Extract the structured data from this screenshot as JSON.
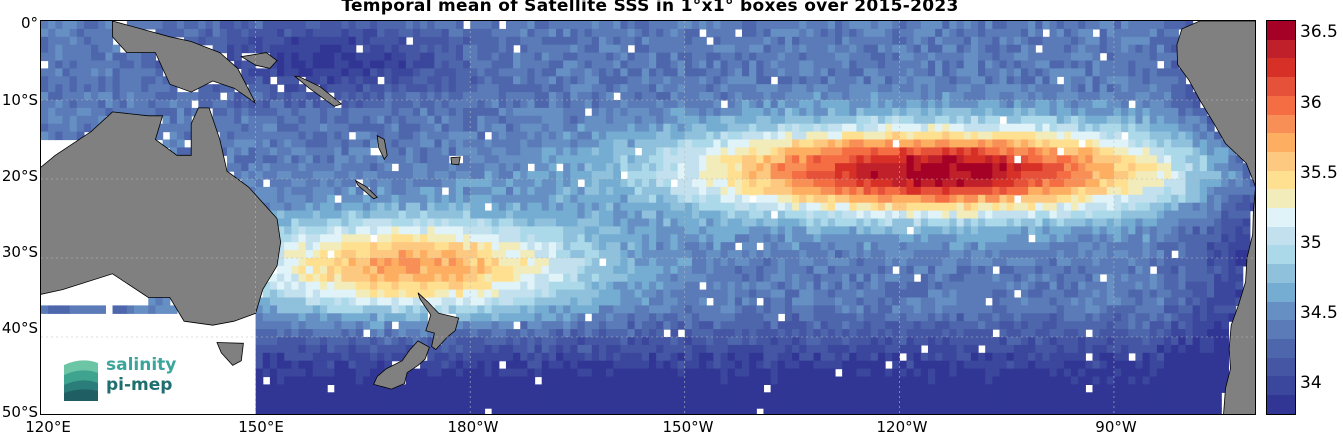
{
  "title": "Temporal mean of Satellite SSS in 1°x1° boxes over 2015-2023",
  "y_ticks": [
    "0°",
    "10°S",
    "20°S",
    "30°S",
    "40°S",
    "50°S"
  ],
  "x_ticks": [
    "120°E",
    "150°E",
    "180°W",
    "150°W",
    "120°W",
    "90°W"
  ],
  "colorbar": {
    "ticks": [
      "36.5",
      "36",
      "35.5",
      "35",
      "34.5",
      "34"
    ],
    "range": [
      33.8,
      36.6
    ],
    "colors": [
      "#a50026",
      "#c0202a",
      "#d73027",
      "#e65139",
      "#f46d43",
      "#f88f57",
      "#fdae61",
      "#fdc87f",
      "#fee090",
      "#f2ebba",
      "#e0f3f8",
      "#c2e0ed",
      "#abd9e9",
      "#8fc1dc",
      "#74add1",
      "#6690c4",
      "#5a7bb8",
      "#4e67ac",
      "#4557a4",
      "#3b479c",
      "#313695"
    ]
  },
  "logo": {
    "line1": "salinity",
    "line2": "pi-mep"
  },
  "land_color": "#808080"
}
